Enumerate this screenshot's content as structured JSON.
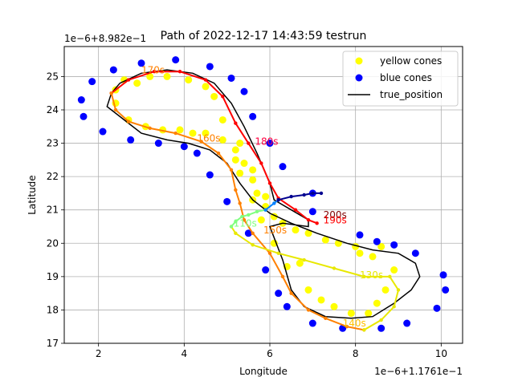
{
  "chart_data": {
    "type": "scatter",
    "title": "Path of 2022-12-17 14:43:59 testrun",
    "xlabel": "Longitude",
    "ylabel": "Latitude",
    "x_offset_label": "1e−6+1.1761e−1",
    "y_offset_label": "1e−6+8.982e−1",
    "xlim": [
      1.2,
      10.5
    ],
    "ylim": [
      17,
      25.9
    ],
    "xticks": [
      2,
      4,
      6,
      8,
      10
    ],
    "yticks": [
      17,
      18,
      19,
      20,
      21,
      22,
      23,
      24,
      25
    ],
    "grid": true,
    "legend": {
      "position": "top-right",
      "entries": [
        {
          "label": "yellow cones",
          "kind": "marker",
          "color": "#ffff00"
        },
        {
          "label": "blue cones",
          "kind": "marker",
          "color": "#0000ff"
        },
        {
          "label": "true_position",
          "kind": "line",
          "color": "#000000"
        }
      ]
    },
    "series": [
      {
        "name": "yellow cones",
        "kind": "scatter",
        "color": "#ffff00",
        "points": [
          [
            2.6,
            24.9
          ],
          [
            2.9,
            24.8
          ],
          [
            3.2,
            25.0
          ],
          [
            3.6,
            25.0
          ],
          [
            4.1,
            24.9
          ],
          [
            4.5,
            24.7
          ],
          [
            4.7,
            24.4
          ],
          [
            4.9,
            23.7
          ],
          [
            5.3,
            23.0
          ],
          [
            5.2,
            22.5
          ],
          [
            5.3,
            22.1
          ],
          [
            5.6,
            22.2
          ],
          [
            5.9,
            21.4
          ],
          [
            5.6,
            21.3
          ],
          [
            5.8,
            20.7
          ],
          [
            6.1,
            20.0
          ],
          [
            6.4,
            19.3
          ],
          [
            6.7,
            19.4
          ],
          [
            6.9,
            18.6
          ],
          [
            7.2,
            18.3
          ],
          [
            7.5,
            18.1
          ],
          [
            7.9,
            17.9
          ],
          [
            8.3,
            17.9
          ],
          [
            8.5,
            18.2
          ],
          [
            8.7,
            18.6
          ],
          [
            8.9,
            19.2
          ],
          [
            8.6,
            19.9
          ],
          [
            8.4,
            19.6
          ],
          [
            8.1,
            19.7
          ],
          [
            8.0,
            19.9
          ],
          [
            7.6,
            20.0
          ],
          [
            7.3,
            20.1
          ],
          [
            6.9,
            20.3
          ],
          [
            6.6,
            20.4
          ],
          [
            6.3,
            20.6
          ],
          [
            6.1,
            20.8
          ],
          [
            5.9,
            21.1
          ],
          [
            5.7,
            21.5
          ],
          [
            5.6,
            21.9
          ],
          [
            5.4,
            22.4
          ],
          [
            5.2,
            22.8
          ],
          [
            4.9,
            23.1
          ],
          [
            4.5,
            23.3
          ],
          [
            4.2,
            23.3
          ],
          [
            3.9,
            23.4
          ],
          [
            3.5,
            23.4
          ],
          [
            3.1,
            23.5
          ],
          [
            2.7,
            23.7
          ],
          [
            2.4,
            24.2
          ],
          [
            2.4,
            24.6
          ]
        ]
      },
      {
        "name": "blue cones",
        "kind": "scatter",
        "color": "#0000ff",
        "points": [
          [
            1.6,
            24.3
          ],
          [
            1.65,
            23.8
          ],
          [
            1.85,
            24.85
          ],
          [
            2.1,
            23.35
          ],
          [
            2.35,
            25.2
          ],
          [
            2.75,
            23.1
          ],
          [
            3.0,
            25.4
          ],
          [
            3.4,
            23.0
          ],
          [
            3.8,
            25.5
          ],
          [
            4.0,
            22.9
          ],
          [
            4.3,
            22.7
          ],
          [
            4.6,
            25.3
          ],
          [
            4.6,
            22.05
          ],
          [
            5.0,
            21.25
          ],
          [
            5.1,
            24.95
          ],
          [
            5.4,
            24.55
          ],
          [
            5.6,
            23.8
          ],
          [
            5.5,
            20.3
          ],
          [
            5.9,
            19.2
          ],
          [
            6.0,
            23.0
          ],
          [
            6.3,
            22.3
          ],
          [
            6.2,
            18.5
          ],
          [
            6.4,
            18.1
          ],
          [
            7.0,
            17.6
          ],
          [
            7.7,
            17.45
          ],
          [
            8.6,
            17.45
          ],
          [
            9.2,
            17.6
          ],
          [
            9.9,
            18.05
          ],
          [
            10.1,
            18.6
          ],
          [
            10.05,
            19.05
          ],
          [
            9.4,
            19.7
          ],
          [
            8.9,
            19.95
          ],
          [
            8.5,
            20.05
          ],
          [
            8.1,
            20.25
          ],
          [
            7.0,
            20.95
          ],
          [
            7.0,
            21.5
          ]
        ]
      },
      {
        "name": "true_position",
        "kind": "line",
        "color": "#000000",
        "points": [
          [
            2.3,
            24.5
          ],
          [
            2.5,
            24.8
          ],
          [
            3.0,
            25.1
          ],
          [
            3.6,
            25.2
          ],
          [
            4.2,
            25.1
          ],
          [
            4.7,
            24.8
          ],
          [
            5.1,
            24.2
          ],
          [
            5.4,
            23.5
          ],
          [
            5.7,
            22.7
          ],
          [
            6.0,
            21.8
          ],
          [
            6.1,
            21.3
          ],
          [
            6.5,
            21.0
          ],
          [
            6.9,
            20.7
          ],
          [
            6.9,
            20.5
          ],
          [
            6.3,
            20.6
          ],
          [
            6.0,
            20.5
          ],
          [
            6.3,
            19.5
          ],
          [
            6.5,
            18.6
          ],
          [
            6.8,
            18.1
          ],
          [
            7.3,
            17.8
          ],
          [
            7.9,
            17.75
          ],
          [
            8.4,
            17.8
          ],
          [
            8.9,
            18.2
          ],
          [
            9.3,
            18.6
          ],
          [
            9.5,
            19.0
          ],
          [
            9.4,
            19.4
          ],
          [
            9.0,
            19.7
          ],
          [
            8.4,
            19.8
          ],
          [
            7.8,
            20.0
          ],
          [
            7.1,
            20.3
          ],
          [
            6.5,
            20.6
          ],
          [
            6.0,
            20.9
          ],
          [
            5.6,
            21.3
          ],
          [
            5.3,
            21.8
          ],
          [
            5.0,
            22.4
          ],
          [
            4.6,
            22.8
          ],
          [
            4.1,
            23.0
          ],
          [
            3.6,
            23.1
          ],
          [
            3.0,
            23.3
          ],
          [
            2.6,
            23.7
          ],
          [
            2.2,
            24.1
          ],
          [
            2.3,
            24.5
          ]
        ]
      },
      {
        "name": "",
        "kind": "colored_path",
        "description_colors": "jet colormap by time",
        "segments": [
          {
            "color": "#ff0000",
            "points": [
              [
                2.3,
                24.5
              ],
              [
                2.7,
                24.9
              ],
              [
                3.3,
                25.15
              ],
              [
                3.9,
                25.15
              ],
              [
                4.5,
                24.9
              ],
              [
                4.9,
                24.4
              ],
              [
                5.2,
                23.6
              ],
              [
                5.5,
                23.0
              ],
              [
                5.8,
                22.4
              ],
              [
                6.0,
                21.8
              ],
              [
                6.2,
                21.35
              ],
              [
                6.6,
                21.0
              ],
              [
                6.9,
                20.7
              ],
              [
                7.1,
                20.6
              ]
            ]
          },
          {
            "color": "#ff8000",
            "points": [
              [
                2.3,
                24.5
              ],
              [
                2.4,
                24.0
              ],
              [
                2.7,
                23.65
              ],
              [
                3.2,
                23.45
              ],
              [
                3.8,
                23.3
              ],
              [
                4.4,
                23.05
              ],
              [
                4.8,
                22.7
              ],
              [
                5.1,
                22.2
              ],
              [
                5.2,
                21.6
              ],
              [
                5.3,
                21.2
              ],
              [
                5.4,
                20.7
              ],
              [
                5.6,
                20.3
              ],
              [
                6.0,
                19.7
              ],
              [
                6.3,
                19.0
              ],
              [
                6.5,
                18.5
              ],
              [
                6.9,
                18.0
              ],
              [
                7.3,
                17.75
              ],
              [
                7.8,
                17.5
              ],
              [
                8.2,
                17.4
              ]
            ]
          },
          {
            "color": "#e8e800",
            "points": [
              [
                8.2,
                17.4
              ],
              [
                8.6,
                17.7
              ],
              [
                8.9,
                18.1
              ],
              [
                9.0,
                18.6
              ],
              [
                8.8,
                19.0
              ],
              [
                8.2,
                19.0
              ],
              [
                7.5,
                19.25
              ],
              [
                6.8,
                19.5
              ],
              [
                6.2,
                19.7
              ],
              [
                5.6,
                19.95
              ],
              [
                5.2,
                20.3
              ],
              [
                5.1,
                20.5
              ]
            ]
          },
          {
            "color": "#80ff80",
            "points": [
              [
                5.1,
                20.5
              ],
              [
                5.2,
                20.65
              ],
              [
                5.35,
                20.8
              ],
              [
                5.5,
                20.85
              ],
              [
                5.7,
                20.95
              ],
              [
                5.9,
                21.0
              ]
            ]
          },
          {
            "color": "#0080ff",
            "points": [
              [
                5.9,
                21.0
              ],
              [
                6.1,
                21.2
              ],
              [
                6.2,
                21.3
              ]
            ]
          },
          {
            "color": "#000090",
            "points": [
              [
                6.2,
                21.3
              ],
              [
                6.5,
                21.4
              ],
              [
                6.8,
                21.45
              ],
              [
                7.0,
                21.5
              ],
              [
                7.2,
                21.5
              ]
            ]
          }
        ]
      }
    ],
    "annotations": [
      {
        "text": "170s",
        "x": 3.0,
        "y": 25.1,
        "color": "#ff8000"
      },
      {
        "text": "160s",
        "x": 4.3,
        "y": 23.05,
        "color": "#ff8000"
      },
      {
        "text": "180s",
        "x": 5.65,
        "y": 22.95,
        "color": "#ff0040"
      },
      {
        "text": "200s",
        "x": 7.25,
        "y": 20.75,
        "color": "#800000"
      },
      {
        "text": "190s",
        "x": 7.25,
        "y": 20.6,
        "color": "#ff0000"
      },
      {
        "text": "150s",
        "x": 5.85,
        "y": 20.3,
        "color": "#ff8000"
      },
      {
        "text": "110s",
        "x": 5.15,
        "y": 20.5,
        "color": "#80ff80"
      },
      {
        "text": "130s",
        "x": 8.1,
        "y": 18.95,
        "color": "#e8e800"
      },
      {
        "text": "140s",
        "x": 7.7,
        "y": 17.5,
        "color": "#ffc000"
      }
    ]
  }
}
